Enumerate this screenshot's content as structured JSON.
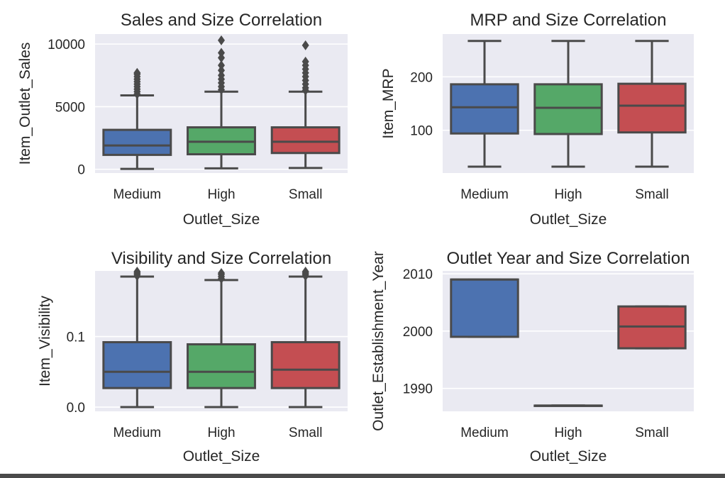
{
  "colors": {
    "background": "#eaeaf2",
    "grid": "#ffffff",
    "line": "#4a4a4a",
    "Medium": "#4c72b0",
    "High": "#55a868",
    "Small": "#c44e52"
  },
  "chart_data": [
    {
      "type": "box",
      "title": "Sales and Size Correlation",
      "xlabel": "Outlet_Size",
      "ylabel": "Item_Outlet_Sales",
      "categories": [
        "Medium",
        "High",
        "Small"
      ],
      "ylim": [
        -300,
        10800
      ],
      "yticks": [
        0,
        5000,
        10000
      ],
      "grid": true,
      "boxes": [
        {
          "category": "Medium",
          "whisker_low": 33,
          "q1": 1150,
          "median": 1900,
          "q3": 3150,
          "whisker_high": 5900,
          "outliers": [
            6000,
            6200,
            6400,
            6600,
            6800,
            7000,
            7200,
            7400,
            7600,
            7700
          ]
        },
        {
          "category": "High",
          "whisker_low": 73,
          "q1": 1200,
          "median": 2200,
          "q3": 3350,
          "whisker_high": 6200,
          "outliers": [
            6350,
            6600,
            6900,
            7200,
            7500,
            7900,
            8300,
            8900,
            9300,
            10300
          ]
        },
        {
          "category": "Small",
          "whisker_low": 100,
          "q1": 1300,
          "median": 2200,
          "q3": 3350,
          "whisker_high": 6200,
          "outliers": [
            6300,
            6500,
            6800,
            7100,
            7400,
            7700,
            8000,
            8300,
            8600,
            9900
          ]
        }
      ]
    },
    {
      "type": "box",
      "title": "MRP and Size Correlation",
      "xlabel": "Outlet_Size",
      "ylabel": "Item_MRP",
      "categories": [
        "Medium",
        "High",
        "Small"
      ],
      "ylim": [
        20,
        280
      ],
      "yticks": [
        100,
        200
      ],
      "grid": true,
      "boxes": [
        {
          "category": "Medium",
          "whisker_low": 32,
          "q1": 94,
          "median": 143,
          "q3": 186,
          "whisker_high": 267,
          "outliers": []
        },
        {
          "category": "High",
          "whisker_low": 32,
          "q1": 93,
          "median": 142,
          "q3": 186,
          "whisker_high": 267,
          "outliers": []
        },
        {
          "category": "Small",
          "whisker_low": 32,
          "q1": 96,
          "median": 146,
          "q3": 187,
          "whisker_high": 267,
          "outliers": []
        }
      ]
    },
    {
      "type": "box",
      "title": "Visibility and Size Correlation",
      "xlabel": "Outlet_Size",
      "ylabel": "Item_Visibility",
      "categories": [
        "Medium",
        "High",
        "Small"
      ],
      "ylim": [
        -0.006,
        0.193
      ],
      "yticks": [
        0.0,
        0.1
      ],
      "ytick_labels": [
        "0.0",
        "0.1"
      ],
      "grid": true,
      "boxes": [
        {
          "category": "Medium",
          "whisker_low": 0.0,
          "q1": 0.027,
          "median": 0.05,
          "q3": 0.092,
          "whisker_high": 0.185,
          "outliers": [
            0.186,
            0.188,
            0.19,
            0.192
          ]
        },
        {
          "category": "High",
          "whisker_low": 0.0,
          "q1": 0.027,
          "median": 0.05,
          "q3": 0.089,
          "whisker_high": 0.18,
          "outliers": [
            0.182,
            0.185,
            0.188,
            0.19
          ]
        },
        {
          "category": "Small",
          "whisker_low": 0.0,
          "q1": 0.027,
          "median": 0.053,
          "q3": 0.092,
          "whisker_high": 0.185,
          "outliers": [
            0.186,
            0.188,
            0.19,
            0.192
          ]
        }
      ]
    },
    {
      "type": "box",
      "title": "Outlet Year and Size Correlation",
      "xlabel": "Outlet_Size",
      "ylabel": "Outlet_Establishment_Year",
      "categories": [
        "Medium",
        "High",
        "Small"
      ],
      "ylim": [
        1986,
        2010.5
      ],
      "yticks": [
        1990,
        2000,
        2010
      ],
      "grid": true,
      "boxes": [
        {
          "category": "Medium",
          "whisker_low": 1999,
          "q1": 1999,
          "median": 2009,
          "q3": 2009,
          "whisker_high": 2009,
          "outliers": []
        },
        {
          "category": "High",
          "whisker_low": 1987,
          "q1": 1987,
          "median": 1987,
          "q3": 1987,
          "whisker_high": 1987,
          "outliers": []
        },
        {
          "category": "Small",
          "whisker_low": 1997,
          "q1": 1997,
          "median": 2000.8,
          "q3": 2004.3,
          "whisker_high": 2004.3,
          "outliers": []
        }
      ]
    }
  ]
}
